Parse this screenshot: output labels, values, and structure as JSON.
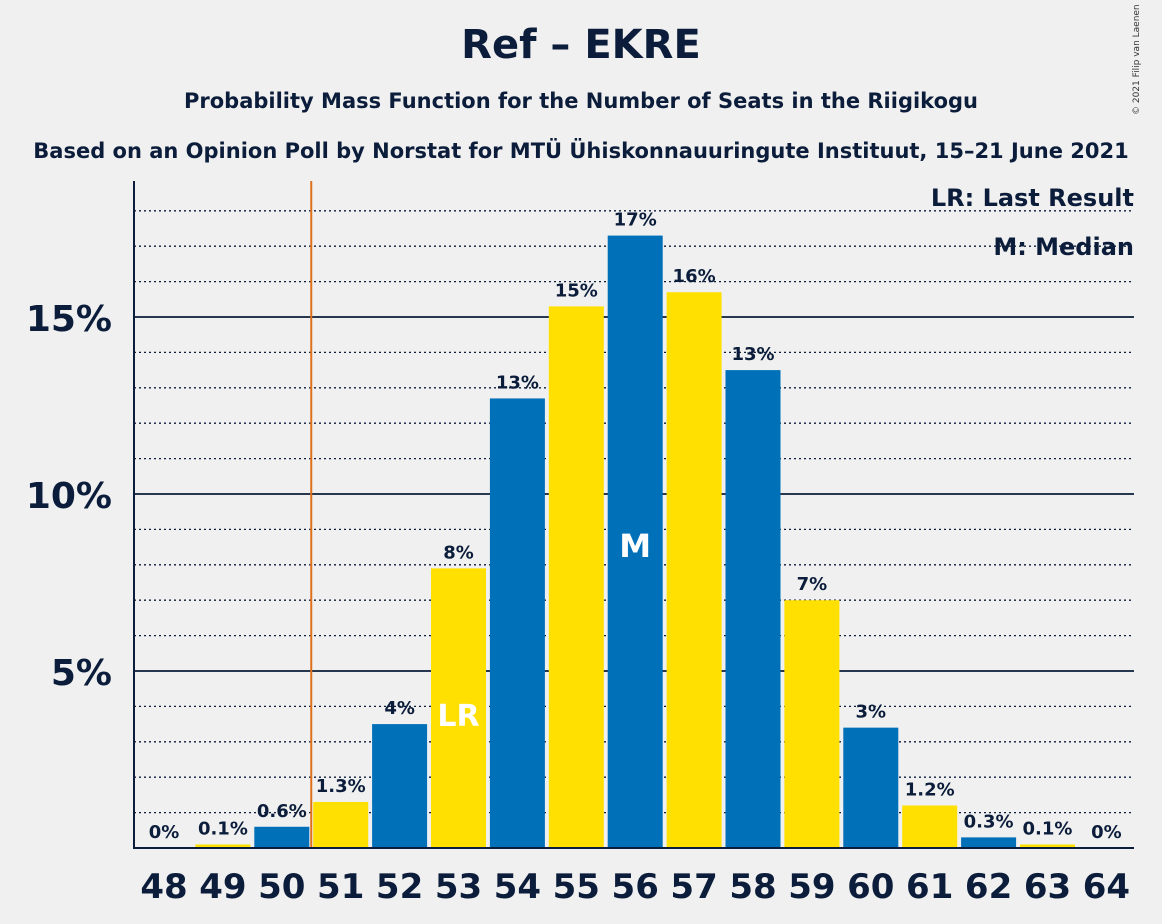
{
  "title": "Ref – EKRE",
  "subtitle": "Probability Mass Function for the Number of Seats in the Riigikogu",
  "source": "Based on an Opinion Poll by Norstat for MTÜ Ühiskonnauuringute Instituut, 15–21 June 2021",
  "copyright": "© 2021 Filip van Laenen",
  "legend": {
    "last_result": "LR: Last Result",
    "median": "M: Median"
  },
  "colors": {
    "blue": "#0070b8",
    "yellow": "#ffe000",
    "last_result_line": "#e0701a",
    "text": "#0b1d3a"
  },
  "chart_data": {
    "type": "bar",
    "categories": [
      "48",
      "49",
      "50",
      "51",
      "52",
      "53",
      "54",
      "55",
      "56",
      "57",
      "58",
      "59",
      "60",
      "61",
      "62",
      "63",
      "64"
    ],
    "values": [
      0,
      0.1,
      0.6,
      1.3,
      3.5,
      7.9,
      12.7,
      15.3,
      17.3,
      15.7,
      13.5,
      7.0,
      3.4,
      1.2,
      0.3,
      0.1,
      0
    ],
    "data_labels": [
      "0%",
      "0.1%",
      "0.6%",
      "1.3%",
      "4%",
      "8%",
      "13%",
      "15%",
      "17%",
      "16%",
      "13%",
      "7%",
      "3%",
      "1.2%",
      "0.3%",
      "0.1%",
      "0%"
    ],
    "y_ticks": [
      5,
      10,
      15
    ],
    "y_tick_labels": [
      "5%",
      "10%",
      "15%"
    ],
    "ylim": [
      0,
      18.9
    ],
    "minor_gridline_step": 1,
    "last_result_seats": "50.5",
    "last_result_bar": "53",
    "last_result_marker": "LR",
    "median_bar": "56",
    "median_marker": "M",
    "bar_color_pattern": [
      "blue",
      "yellow"
    ],
    "xlabel": "",
    "ylabel": ""
  }
}
